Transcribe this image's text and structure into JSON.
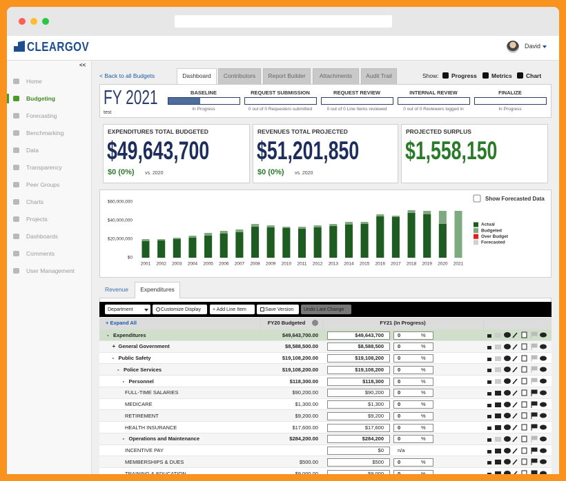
{
  "header": {
    "logo": "CLEARGOV",
    "user": "David"
  },
  "sidebar": {
    "collapse": "<<",
    "items": [
      {
        "label": "Home"
      },
      {
        "label": "Budgeting",
        "active": true
      },
      {
        "label": "Forecasting"
      },
      {
        "label": "Benchmarking"
      },
      {
        "label": "Data"
      },
      {
        "label": "Transparency"
      },
      {
        "label": "Peer Groups"
      },
      {
        "label": "Charts"
      },
      {
        "label": "Projects"
      },
      {
        "label": "Dashboards"
      },
      {
        "label": "Comments"
      },
      {
        "label": "User Management"
      }
    ]
  },
  "nav": {
    "back": "< Back to all Budgets",
    "tabs": [
      {
        "label": "Dashboard",
        "active": true
      },
      {
        "label": "Contributors"
      },
      {
        "label": "Report Builder"
      },
      {
        "label": "Attachments"
      },
      {
        "label": "Audit Trail"
      }
    ],
    "show_label": "Show:",
    "show_options": [
      "Progress",
      "Metrics",
      "Chart"
    ]
  },
  "progress": {
    "title": "FY 2021",
    "subtitle": "test",
    "stages": [
      {
        "name": "BASELINE",
        "status": "In Progress",
        "progress": 45
      },
      {
        "name": "REQUEST SUBMISSION",
        "status": "0 out of 0 Requesters submitted",
        "progress": 0
      },
      {
        "name": "REQUEST REVIEW",
        "status": "0 out of 0 Line Items reviewed",
        "progress": 0
      },
      {
        "name": "INTERNAL REVIEW",
        "status": "0 out of 0 Reviewers logged in",
        "progress": 0
      },
      {
        "name": "FINALIZE",
        "status": "In Progress",
        "progress": 0
      }
    ]
  },
  "metrics": [
    {
      "label": "EXPENDITURES TOTAL BUDGETED",
      "value": "$49,643,700",
      "change": "$0 (0%)",
      "change_note": "vs. 2020"
    },
    {
      "label": "REVENUES TOTAL PROJECTED",
      "value": "$51,201,850",
      "change": "$0 (0%)",
      "change_note": "vs. 2020"
    },
    {
      "label": "PROJECTED SURPLUS",
      "value": "$1,558,150"
    }
  ],
  "chart_data": {
    "type": "bar",
    "toggle_label": "Show Forecasted Data",
    "categories": [
      "2001",
      "2002",
      "2003",
      "2004",
      "2005",
      "2006",
      "2007",
      "2008",
      "2009",
      "2010",
      "2011",
      "2012",
      "2013",
      "2014",
      "2015",
      "2016",
      "2017",
      "2018",
      "2019",
      "2020",
      "2021"
    ],
    "series": [
      {
        "name": "Actual",
        "color": "#1e5c22",
        "values": [
          17800000,
          18500000,
          20000000,
          21500000,
          23700000,
          26000000,
          27400000,
          33300000,
          32600000,
          31900000,
          31100000,
          32600000,
          34000000,
          35600000,
          36300000,
          44400000,
          43700000,
          48100000,
          46700000,
          36300000,
          null
        ]
      },
      {
        "name": "Budgeted",
        "color": "#7fa97f",
        "values": [
          20000000,
          20000000,
          21500000,
          23700000,
          26700000,
          28900000,
          30400000,
          36300000,
          34800000,
          33300000,
          33300000,
          34800000,
          36300000,
          38500000,
          38500000,
          46700000,
          45200000,
          51100000,
          50400000,
          50400000,
          50400000
        ]
      },
      {
        "name": "Over Budget",
        "color": "#e3201b",
        "values": [
          null,
          null,
          null,
          null,
          null,
          null,
          null,
          null,
          null,
          null,
          null,
          null,
          null,
          null,
          null,
          null,
          null,
          null,
          null,
          null,
          null
        ]
      },
      {
        "name": "Forecasted",
        "color": "#d0d0d0",
        "values": [
          null,
          null,
          null,
          null,
          null,
          null,
          null,
          null,
          null,
          null,
          null,
          null,
          null,
          null,
          null,
          null,
          null,
          null,
          null,
          null,
          null
        ]
      }
    ],
    "ylim": [
      0,
      60000000
    ],
    "yticks": [
      {
        "value": 0,
        "label": "$0"
      },
      {
        "value": 20000000,
        "label": "$20,000,000"
      },
      {
        "value": 40000000,
        "label": "$40,000,000"
      },
      {
        "value": 60000000,
        "label": "$60,000,000"
      }
    ],
    "grid": false
  },
  "table": {
    "tabs": [
      {
        "label": "Revenue"
      },
      {
        "label": "Expenditures",
        "active": true
      }
    ],
    "toolbar": [
      "Department",
      "Customize Display",
      "+ Add Line Item",
      "Save Version",
      "Undo Last Change"
    ],
    "headers": [
      "+ Expand All",
      "FY20 Budgeted",
      "FY21 (In Progress)"
    ],
    "percent_sign": "%",
    "rows": [
      {
        "toggle": "-",
        "name": "Expenditures",
        "level": 0,
        "fy20": "$49,643,700.00",
        "fy21": "$49,643,700",
        "pct": 0
      },
      {
        "toggle": "+",
        "name": "General Government",
        "level": 1,
        "fy20": "$8,588,500.00",
        "fy21": "$8,588,500",
        "pct": 0
      },
      {
        "toggle": "-",
        "name": "Public Safety",
        "level": 1,
        "fy20": "$19,108,200.00",
        "fy21": "$19,108,200",
        "pct": 0
      },
      {
        "toggle": "-",
        "name": "Police Services",
        "level": 2,
        "fy20": "$19,108,200.00",
        "fy21": "$19,108,200",
        "pct": 0
      },
      {
        "toggle": "-",
        "name": "Personnel",
        "level": 3,
        "fy20": "$118,300.00",
        "fy21": "$118,300",
        "pct": 0
      },
      {
        "name": "FULL-TIME SALARIES",
        "level": 4,
        "fy20": "$90,200.00",
        "fy21": "$90,200",
        "pct": 0
      },
      {
        "name": "MEDICARE",
        "level": 4,
        "fy20": "$1,300.00",
        "fy21": "$1,300",
        "pct": 0
      },
      {
        "name": "RETIREMENT",
        "level": 4,
        "fy20": "$9,200.00",
        "fy21": "$9,200",
        "pct": 0
      },
      {
        "name": "HEALTH INSURANCE",
        "level": 4,
        "fy20": "$17,600.00",
        "fy21": "$17,600",
        "pct": 0
      },
      {
        "toggle": "-",
        "name": "Operations and Maintenance",
        "level": 3,
        "fy20": "$284,200.00",
        "fy21": "$284,200",
        "pct": 0
      },
      {
        "name": "INCENTIVE PAY",
        "level": 4,
        "fy21": "$0",
        "pct": "n/a"
      },
      {
        "name": "MEMBERSHIPS & DUES",
        "level": 4,
        "fy20": "$500.00",
        "fy21": "$500",
        "pct": 0
      },
      {
        "name": "TRAINING & EDUCATION",
        "level": 4,
        "fy20": "$9,000.00",
        "fy21": "$9,000",
        "pct": 0
      }
    ]
  }
}
